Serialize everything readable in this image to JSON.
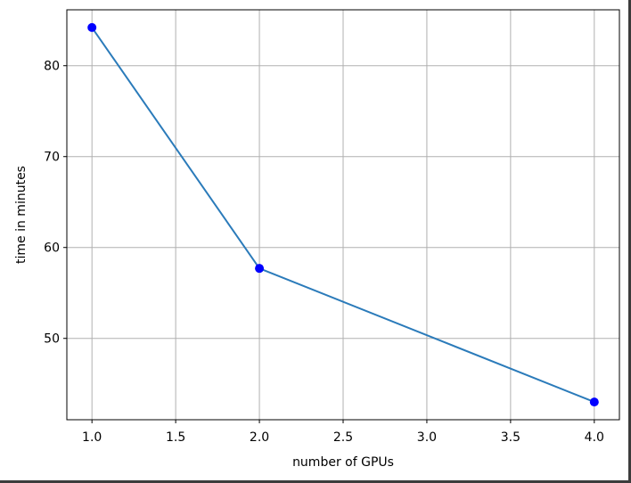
{
  "chart_data": {
    "type": "line",
    "title": "",
    "xlabel": "number of GPUs",
    "ylabel": "time in minutes",
    "x": [
      1.0,
      2.0,
      4.0
    ],
    "series": [
      {
        "values": [
          84.2,
          57.7,
          43.0
        ],
        "line_color": "#2b7bba",
        "marker_color": "#0000ff"
      }
    ],
    "xlim": [
      0.85,
      4.15
    ],
    "ylim": [
      41.05,
      86.15
    ],
    "xticks": [
      1.0,
      1.5,
      2.0,
      2.5,
      3.0,
      3.5,
      4.0
    ],
    "xtick_labels": [
      "1.0",
      "1.5",
      "2.0",
      "2.5",
      "3.0",
      "3.5",
      "4.0"
    ],
    "yticks": [
      50,
      60,
      70,
      80
    ],
    "ytick_labels": [
      "50",
      "60",
      "70",
      "80"
    ],
    "grid": true,
    "grid_color": "#b0b0b0",
    "legend": "none"
  }
}
